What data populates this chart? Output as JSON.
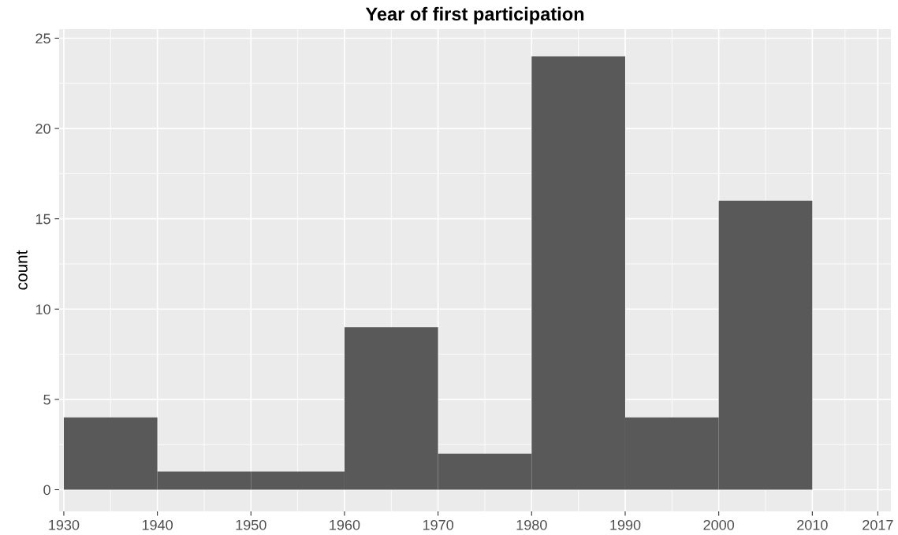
{
  "chart_data": {
    "type": "histogram",
    "title": "Year of first participation",
    "ylabel": "count",
    "bins": [
      1930,
      1940,
      1950,
      1960,
      1970,
      1980,
      1990,
      2000,
      2010
    ],
    "values": [
      4,
      1,
      1,
      9,
      2,
      24,
      4,
      16
    ],
    "color": "#595959",
    "xlim": [
      1929.5,
      2018.4
    ],
    "xticks": [
      1930,
      1940,
      1950,
      1960,
      1970,
      1980,
      1990,
      2000,
      2010,
      2017
    ],
    "ylim": [
      -1.2,
      25.5
    ],
    "yticks": [
      0,
      5,
      10,
      15,
      20,
      25
    ],
    "grid": true
  }
}
